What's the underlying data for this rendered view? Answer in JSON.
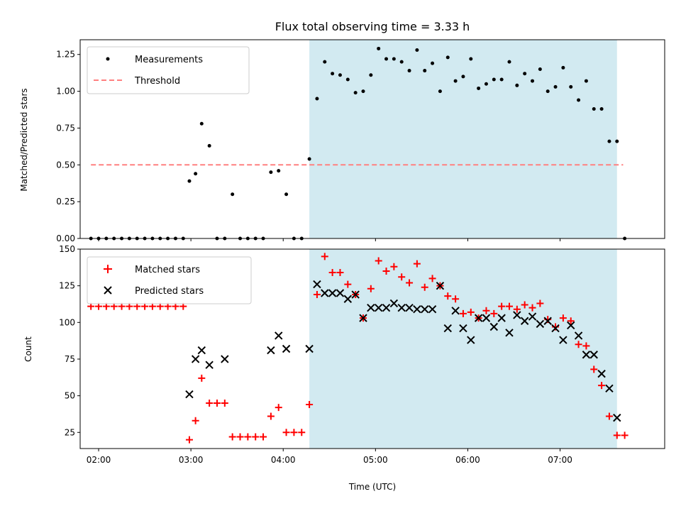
{
  "chart_data": [
    {
      "type": "scatter",
      "title": "Flux total observing time = 3.33 h",
      "xlabel": "",
      "ylabel": "Matched/Predicted stars",
      "xlim": [
        "01:48",
        "08:08"
      ],
      "ylim": [
        0,
        1.35
      ],
      "x_ticks": [
        "02:00",
        "03:00",
        "04:00",
        "05:00",
        "06:00",
        "07:00"
      ],
      "y_ticks": [
        "0.00",
        "0.25",
        "0.50",
        "0.75",
        "1.00",
        "1.25"
      ],
      "shaded_region": {
        "start": "04:17",
        "end": "07:37",
        "color": "#add8e6"
      },
      "threshold": {
        "name": "Threshold",
        "value": 0.5,
        "x_range": [
          "01:55",
          "07:41"
        ],
        "color": "#ff8080",
        "style": "dashed"
      },
      "legend": {
        "placement": "top-left",
        "entries": [
          "Measurements",
          "Threshold"
        ]
      },
      "series": [
        {
          "name": "Measurements",
          "color": "#000000",
          "marker": "dot",
          "x": [
            "01:55",
            "02:00",
            "02:05",
            "02:10",
            "02:15",
            "02:20",
            "02:25",
            "02:30",
            "02:35",
            "02:40",
            "02:45",
            "02:50",
            "02:55",
            "02:59",
            "03:03",
            "03:07",
            "03:12",
            "03:17",
            "03:22",
            "03:27",
            "03:32",
            "03:37",
            "03:42",
            "03:47",
            "03:52",
            "03:57",
            "04:02",
            "04:07",
            "04:12",
            "04:17",
            "04:22",
            "04:27",
            "04:32",
            "04:37",
            "04:42",
            "04:47",
            "04:52",
            "04:57",
            "05:02",
            "05:07",
            "05:12",
            "05:17",
            "05:22",
            "05:27",
            "05:32",
            "05:37",
            "05:42",
            "05:47",
            "05:52",
            "05:57",
            "06:02",
            "06:07",
            "06:12",
            "06:17",
            "06:22",
            "06:27",
            "06:32",
            "06:37",
            "06:42",
            "06:47",
            "06:52",
            "06:57",
            "07:02",
            "07:07",
            "07:12",
            "07:17",
            "07:22",
            "07:27",
            "07:32",
            "07:37",
            "07:42"
          ],
          "y": [
            0,
            0,
            0,
            0,
            0,
            0,
            0,
            0,
            0,
            0,
            0,
            0,
            0,
            0.39,
            0.44,
            0.78,
            0.63,
            0,
            0,
            0.3,
            0,
            0,
            0,
            0,
            0.45,
            0.46,
            0.3,
            0,
            0,
            0.54,
            0.95,
            1.2,
            1.12,
            1.11,
            1.08,
            0.99,
            1.0,
            1.11,
            1.29,
            1.22,
            1.22,
            1.2,
            1.14,
            1.28,
            1.14,
            1.19,
            1.0,
            1.23,
            1.07,
            1.1,
            1.22,
            1.02,
            1.05,
            1.08,
            1.08,
            1.2,
            1.04,
            1.12,
            1.07,
            1.15,
            1.0,
            1.03,
            1.16,
            1.03,
            0.94,
            1.07,
            0.88,
            0.88,
            0.66,
            0.66,
            0
          ]
        }
      ]
    },
    {
      "type": "scatter",
      "title": "",
      "xlabel": "Time (UTC)",
      "ylabel": "Count",
      "xlim": [
        "01:48",
        "08:08"
      ],
      "ylim": [
        14,
        150
      ],
      "x_ticks": [
        "02:00",
        "03:00",
        "04:00",
        "05:00",
        "06:00",
        "07:00"
      ],
      "y_ticks": [
        "25",
        "50",
        "75",
        "100",
        "125",
        "150"
      ],
      "shaded_region": {
        "start": "04:17",
        "end": "07:37",
        "color": "#add8e6"
      },
      "legend": {
        "placement": "top-left",
        "entries": [
          "Matched stars",
          "Predicted stars"
        ]
      },
      "series": [
        {
          "name": "Matched stars",
          "color": "#ff0000",
          "marker": "plus",
          "x": [
            "01:55",
            "02:00",
            "02:05",
            "02:10",
            "02:15",
            "02:20",
            "02:25",
            "02:30",
            "02:35",
            "02:40",
            "02:45",
            "02:50",
            "02:55",
            "02:59",
            "03:03",
            "03:07",
            "03:12",
            "03:17",
            "03:22",
            "03:27",
            "03:32",
            "03:37",
            "03:42",
            "03:47",
            "03:52",
            "03:57",
            "04:02",
            "04:07",
            "04:12",
            "04:17",
            "04:22",
            "04:27",
            "04:32",
            "04:37",
            "04:42",
            "04:47",
            "04:52",
            "04:57",
            "05:02",
            "05:07",
            "05:12",
            "05:17",
            "05:22",
            "05:27",
            "05:32",
            "05:37",
            "05:42",
            "05:47",
            "05:52",
            "05:57",
            "06:02",
            "06:07",
            "06:12",
            "06:17",
            "06:22",
            "06:27",
            "06:32",
            "06:37",
            "06:42",
            "06:47",
            "06:52",
            "06:57",
            "07:02",
            "07:07",
            "07:12",
            "07:17",
            "07:22",
            "07:27",
            "07:32",
            "07:37",
            "07:42"
          ],
          "y": [
            111,
            111,
            111,
            111,
            111,
            111,
            111,
            111,
            111,
            111,
            111,
            111,
            111,
            20,
            33,
            62,
            45,
            45,
            45,
            22,
            22,
            22,
            22,
            22,
            36,
            42,
            25,
            25,
            25,
            44,
            119,
            145,
            134,
            134,
            126,
            119,
            103,
            123,
            142,
            135,
            138,
            131,
            127,
            140,
            124,
            130,
            125,
            118,
            116,
            106,
            107,
            103,
            108,
            106,
            111,
            111,
            109,
            112,
            110,
            113,
            102,
            97,
            103,
            101,
            85,
            84,
            68,
            57,
            36,
            23,
            23
          ]
        },
        {
          "name": "Predicted stars",
          "color": "#000000",
          "marker": "x",
          "x": [
            "02:59",
            "03:03",
            "03:07",
            "03:12",
            "03:22",
            "03:52",
            "03:57",
            "04:02",
            "04:17",
            "04:22",
            "04:27",
            "04:32",
            "04:37",
            "04:42",
            "04:47",
            "04:52",
            "04:57",
            "05:02",
            "05:07",
            "05:12",
            "05:17",
            "05:22",
            "05:27",
            "05:32",
            "05:37",
            "05:42",
            "05:47",
            "05:52",
            "05:57",
            "06:02",
            "06:07",
            "06:12",
            "06:17",
            "06:22",
            "06:27",
            "06:32",
            "06:37",
            "06:42",
            "06:47",
            "06:52",
            "06:57",
            "07:02",
            "07:07",
            "07:12",
            "07:17",
            "07:22",
            "07:27",
            "07:32",
            "07:37"
          ],
          "y": [
            51,
            75,
            81,
            71,
            75,
            81,
            91,
            82,
            82,
            126,
            120,
            120,
            120,
            116,
            119,
            103,
            110,
            110,
            110,
            113,
            110,
            110,
            109,
            109,
            109,
            125,
            96,
            108,
            96,
            88,
            103,
            103,
            97,
            103,
            93,
            105,
            101,
            104,
            99,
            101,
            96,
            88,
            98,
            91,
            78,
            78,
            65,
            55,
            35
          ]
        }
      ]
    }
  ]
}
